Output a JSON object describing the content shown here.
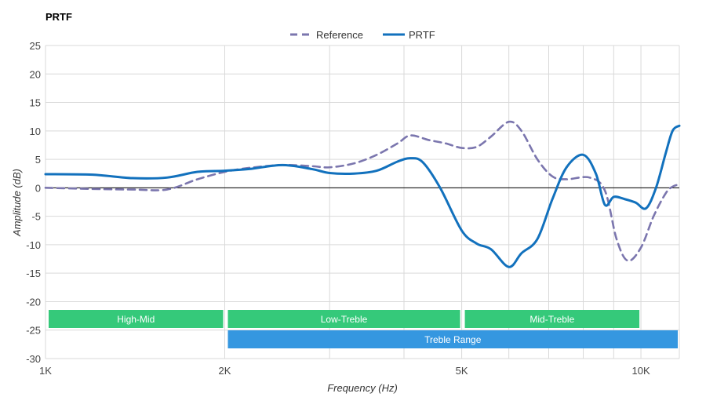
{
  "chart_data": {
    "type": "line",
    "title": "PRTF",
    "xlabel": "Frequency (Hz)",
    "ylabel": "Amplitude (dB)",
    "x_scale": "log",
    "xlim": [
      1000,
      11600
    ],
    "ylim": [
      -30,
      25
    ],
    "x_ticks": [
      {
        "value": 1000,
        "label": "1K"
      },
      {
        "value": 2000,
        "label": "2K"
      },
      {
        "value": 5000,
        "label": "5K"
      },
      {
        "value": 10000,
        "label": "10K"
      }
    ],
    "x_minor_gridlines": [
      3000,
      4000,
      6000,
      7000,
      8000,
      9000,
      11600
    ],
    "y_ticks": [
      25,
      20,
      15,
      10,
      5,
      0,
      -5,
      -10,
      -15,
      -20,
      -25,
      -30
    ],
    "grid": true,
    "legend_position": "top-center",
    "series": [
      {
        "name": "Reference",
        "style": "dashed",
        "color": "#7b76ae",
        "points": [
          [
            1000,
            0
          ],
          [
            1200,
            -0.2
          ],
          [
            1400,
            -0.3
          ],
          [
            1600,
            -0.3
          ],
          [
            1800,
            1.5
          ],
          [
            2000,
            2.8
          ],
          [
            2200,
            3.5
          ],
          [
            2500,
            4
          ],
          [
            2800,
            3.8
          ],
          [
            3000,
            3.6
          ],
          [
            3300,
            4.3
          ],
          [
            3600,
            5.8
          ],
          [
            3900,
            7.8
          ],
          [
            4100,
            9.2
          ],
          [
            4400,
            8.4
          ],
          [
            4700,
            7.8
          ],
          [
            5000,
            7
          ],
          [
            5300,
            7.2
          ],
          [
            5600,
            9
          ],
          [
            6000,
            11.6
          ],
          [
            6300,
            10
          ],
          [
            6700,
            5
          ],
          [
            7100,
            2
          ],
          [
            7500,
            1.5
          ],
          [
            8200,
            1.8
          ],
          [
            8700,
            -0.5
          ],
          [
            9100,
            -9
          ],
          [
            9500,
            -12.8
          ],
          [
            10000,
            -10.5
          ],
          [
            10500,
            -5
          ],
          [
            11000,
            -1
          ],
          [
            11300,
            0.2
          ],
          [
            11600,
            0.6
          ]
        ]
      },
      {
        "name": "PRTF",
        "style": "solid",
        "color": "#1271bd",
        "points": [
          [
            1000,
            2.4
          ],
          [
            1200,
            2.3
          ],
          [
            1400,
            1.7
          ],
          [
            1600,
            1.8
          ],
          [
            1800,
            2.8
          ],
          [
            2000,
            3
          ],
          [
            2200,
            3.3
          ],
          [
            2500,
            4
          ],
          [
            2800,
            3.3
          ],
          [
            3000,
            2.6
          ],
          [
            3300,
            2.5
          ],
          [
            3600,
            3
          ],
          [
            3900,
            4.6
          ],
          [
            4100,
            5.2
          ],
          [
            4300,
            4.5
          ],
          [
            4600,
            0
          ],
          [
            5000,
            -7.5
          ],
          [
            5300,
            -9.8
          ],
          [
            5600,
            -10.8
          ],
          [
            6000,
            -13.9
          ],
          [
            6300,
            -11.5
          ],
          [
            6700,
            -9
          ],
          [
            7100,
            -2
          ],
          [
            7500,
            3.6
          ],
          [
            8000,
            5.8
          ],
          [
            8400,
            2.5
          ],
          [
            8700,
            -3
          ],
          [
            9000,
            -1.6
          ],
          [
            9400,
            -2
          ],
          [
            9800,
            -2.6
          ],
          [
            10200,
            -3.6
          ],
          [
            10600,
            0
          ],
          [
            11000,
            6
          ],
          [
            11300,
            10
          ],
          [
            11600,
            10.9
          ]
        ]
      }
    ],
    "bands": [
      {
        "label": "High-Mid",
        "from": 1000,
        "to": 2000,
        "row": 1,
        "color": "#35c97a"
      },
      {
        "label": "Low-Treble",
        "from": 2000,
        "to": 5000,
        "row": 1,
        "color": "#35c97a"
      },
      {
        "label": "Mid-Treble",
        "from": 5000,
        "to": 10000,
        "row": 1,
        "color": "#35c97a"
      },
      {
        "label": "Treble Range",
        "from": 2000,
        "to": 11600,
        "row": 2,
        "color": "#3597e0"
      }
    ],
    "zero_line": true
  }
}
